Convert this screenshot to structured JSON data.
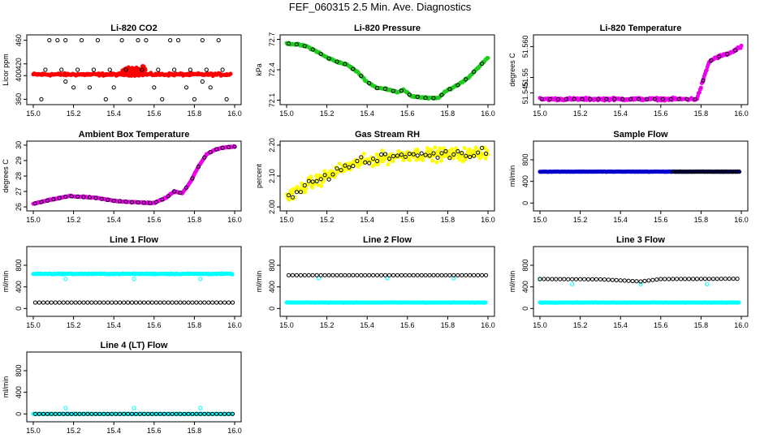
{
  "figure": {
    "title": "FEF_060315  2.5 Min. Ave. Diagnostics"
  },
  "colors": {
    "red": "#ff0000",
    "green": "#22cc22",
    "magenta": "#ee00ee",
    "yellow": "#ffff00",
    "blue": "#0000cc",
    "cyan": "#00ffff",
    "black": "#000000"
  },
  "chart_data": [
    {
      "type": "scatter",
      "title": "Li-820 CO2",
      "ylabel": "Licor ppm",
      "xlim": [
        15.0,
        16.0
      ],
      "ylim": [
        355,
        465
      ],
      "xticks": [
        "15.0",
        "15.2",
        "15.4",
        "15.6",
        "15.8",
        "16.0"
      ],
      "yticks": [
        {
          "v": 360,
          "t": "360"
        },
        {
          "v": 400,
          "t": "400"
        },
        {
          "v": 420,
          "t": "420"
        },
        {
          "v": 460,
          "t": "460"
        }
      ],
      "series": [
        {
          "marker": "dense",
          "color": "red",
          "kind": "flat",
          "y": 402,
          "noise": 3,
          "start": 15.0,
          "end": 15.98
        },
        {
          "marker": "dense",
          "color": "red",
          "kind": "bump",
          "x0": 15.44,
          "x1": 15.56,
          "y": 410,
          "noise": 8
        },
        {
          "marker": "ring",
          "color": "black",
          "kind": "points",
          "pts": [
            [
              15.04,
              360
            ],
            [
              15.08,
              460
            ],
            [
              15.12,
              460
            ],
            [
              15.16,
              460
            ],
            [
              15.2,
              380
            ],
            [
              15.24,
              460
            ],
            [
              15.28,
              380
            ],
            [
              15.32,
              460
            ],
            [
              15.36,
              360
            ],
            [
              15.4,
              380
            ],
            [
              15.44,
              460
            ],
            [
              15.48,
              360
            ],
            [
              15.52,
              460
            ],
            [
              15.56,
              460
            ],
            [
              15.6,
              380
            ],
            [
              15.64,
              360
            ],
            [
              15.68,
              460
            ],
            [
              15.72,
              460
            ],
            [
              15.76,
              380
            ],
            [
              15.8,
              360
            ],
            [
              15.84,
              460
            ],
            [
              15.88,
              380
            ],
            [
              15.92,
              460
            ],
            [
              15.96,
              360
            ],
            [
              15.06,
              410
            ],
            [
              15.14,
              410
            ],
            [
              15.22,
              410
            ],
            [
              15.3,
              410
            ],
            [
              15.38,
              410
            ],
            [
              15.46,
              410
            ],
            [
              15.54,
              410
            ],
            [
              15.62,
              410
            ],
            [
              15.7,
              410
            ],
            [
              15.78,
              410
            ],
            [
              15.86,
              410
            ],
            [
              15.94,
              410
            ],
            [
              15.16,
              390
            ],
            [
              15.84,
              390
            ]
          ]
        }
      ]
    },
    {
      "type": "scatter",
      "title": "Li-820 Pressure",
      "ylabel": "kPa",
      "xlim": [
        15.0,
        16.0
      ],
      "ylim": [
        72.08,
        72.72
      ],
      "xticks": [
        "15.0",
        "15.2",
        "15.4",
        "15.6",
        "15.8",
        "16.0"
      ],
      "yticks": [
        {
          "v": 72.1,
          "t": "72.1"
        },
        {
          "v": 72.4,
          "t": "72.4"
        },
        {
          "v": 72.7,
          "t": "72.7"
        }
      ],
      "series": [
        {
          "marker": "dense",
          "color": "green",
          "kind": "curve",
          "noise": 0.012,
          "pts": [
            [
              15.0,
              72.66
            ],
            [
              15.05,
              72.65
            ],
            [
              15.1,
              72.63
            ],
            [
              15.15,
              72.58
            ],
            [
              15.2,
              72.52
            ],
            [
              15.25,
              72.48
            ],
            [
              15.3,
              72.45
            ],
            [
              15.35,
              72.38
            ],
            [
              15.4,
              72.28
            ],
            [
              15.45,
              72.22
            ],
            [
              15.5,
              72.21
            ],
            [
              15.55,
              72.18
            ],
            [
              15.58,
              72.2
            ],
            [
              15.62,
              72.14
            ],
            [
              15.7,
              72.12
            ],
            [
              15.75,
              72.12
            ],
            [
              15.8,
              72.2
            ],
            [
              15.85,
              72.25
            ],
            [
              15.9,
              72.32
            ],
            [
              15.95,
              72.42
            ],
            [
              16.0,
              72.52
            ]
          ]
        },
        {
          "marker": "ring",
          "color": "black",
          "kind": "sample",
          "step": 0.04,
          "ref": 0,
          "offset": 0.0
        }
      ]
    },
    {
      "type": "scatter",
      "title": "Li-820 Temperature",
      "ylabel": "degrees C",
      "xlim": [
        15.0,
        16.0
      ],
      "ylim": [
        51.542,
        51.563
      ],
      "xticks": [
        "15.0",
        "15.2",
        "15.4",
        "15.6",
        "15.8",
        "16.0"
      ],
      "yticks": [
        {
          "v": 51.545,
          "t": "51.545"
        },
        {
          "v": 51.55,
          "t": "51.55"
        },
        {
          "v": 51.56,
          "t": "51.560"
        }
      ],
      "series": [
        {
          "marker": "dense",
          "color": "magenta",
          "kind": "curve",
          "noise": 0.0006,
          "pts": [
            [
              15.0,
              51.543
            ],
            [
              15.78,
              51.543
            ],
            [
              15.8,
              51.547
            ],
            [
              15.82,
              51.551
            ],
            [
              15.84,
              51.555
            ],
            [
              15.86,
              51.556
            ],
            [
              15.9,
              51.557
            ],
            [
              15.95,
              51.558
            ],
            [
              16.0,
              51.56
            ]
          ]
        },
        {
          "marker": "ring",
          "color": "black",
          "kind": "sample",
          "step": 0.04,
          "ref": 0,
          "offset": 0.0
        }
      ]
    },
    {
      "type": "scatter",
      "title": "Ambient Box Temperature",
      "ylabel": "degrees C",
      "xlim": [
        15.0,
        16.0
      ],
      "ylim": [
        25.9,
        30.1
      ],
      "xticks": [
        "15.0",
        "15.2",
        "15.4",
        "15.6",
        "15.8",
        "16.0"
      ],
      "yticks": [
        {
          "v": 26,
          "t": "26"
        },
        {
          "v": 27,
          "t": "27"
        },
        {
          "v": 28,
          "t": "28"
        },
        {
          "v": 29,
          "t": "29"
        },
        {
          "v": 30,
          "t": "30"
        }
      ],
      "series": [
        {
          "marker": "dense",
          "color": "magenta",
          "kind": "curve",
          "noise": 0.05,
          "pts": [
            [
              15.0,
              26.2
            ],
            [
              15.1,
              26.5
            ],
            [
              15.18,
              26.7
            ],
            [
              15.3,
              26.6
            ],
            [
              15.4,
              26.4
            ],
            [
              15.5,
              26.3
            ],
            [
              15.6,
              26.25
            ],
            [
              15.66,
              26.6
            ],
            [
              15.7,
              27.0
            ],
            [
              15.74,
              26.9
            ],
            [
              15.78,
              27.6
            ],
            [
              15.82,
              28.6
            ],
            [
              15.86,
              29.4
            ],
            [
              15.9,
              29.7
            ],
            [
              15.95,
              29.85
            ],
            [
              16.0,
              29.9
            ]
          ]
        },
        {
          "marker": "ring",
          "color": "black",
          "kind": "sample",
          "step": 0.03,
          "ref": 0,
          "offset": 0.0
        }
      ]
    },
    {
      "type": "scatter",
      "title": "Gas Stream RH",
      "ylabel": "percent",
      "xlim": [
        15.0,
        16.0
      ],
      "ylim": [
        1.995,
        2.205
      ],
      "xticks": [
        "15.0",
        "15.2",
        "15.4",
        "15.6",
        "15.8",
        "16.0"
      ],
      "yticks": [
        {
          "v": 2.0,
          "t": "2.00"
        },
        {
          "v": 2.1,
          "t": "2.10"
        },
        {
          "v": 2.2,
          "t": "2.20"
        }
      ],
      "series": [
        {
          "marker": "dense",
          "color": "yellow",
          "kind": "curve",
          "noise": 0.03,
          "pts": [
            [
              15.0,
              2.03
            ],
            [
              15.1,
              2.07
            ],
            [
              15.2,
              2.1
            ],
            [
              15.3,
              2.13
            ],
            [
              15.4,
              2.15
            ],
            [
              15.5,
              2.16
            ],
            [
              15.6,
              2.17
            ],
            [
              15.7,
              2.17
            ],
            [
              15.8,
              2.17
            ],
            [
              15.9,
              2.17
            ],
            [
              16.0,
              2.18
            ]
          ]
        },
        {
          "marker": "ring",
          "color": "black",
          "kind": "sample",
          "step": 0.02,
          "ref": 0,
          "offset": 0.0,
          "noise": 0.02
        }
      ]
    },
    {
      "type": "scatter",
      "title": "Sample Flow",
      "ylabel": "ml/min",
      "xlim": [
        15.0,
        16.0
      ],
      "ylim": [
        -100,
        1100
      ],
      "xticks": [
        "15.0",
        "15.2",
        "15.4",
        "15.6",
        "15.8",
        "16.0"
      ],
      "yticks": [
        {
          "v": 0,
          "t": "0"
        },
        {
          "v": 400,
          "t": "400"
        },
        {
          "v": 800,
          "t": "800"
        }
      ],
      "series": [
        {
          "marker": "dense",
          "color": "blue",
          "kind": "flat",
          "y": 580,
          "noise": 5,
          "start": 15.0,
          "end": 15.99
        },
        {
          "marker": "ring",
          "color": "black",
          "kind": "flatring",
          "y": 580,
          "start": 15.66,
          "end": 15.99,
          "step": 0.01
        }
      ]
    },
    {
      "type": "scatter",
      "title": "Line 1 Flow",
      "ylabel": "ml/min",
      "xlim": [
        15.0,
        16.0
      ],
      "ylim": [
        -100,
        1100
      ],
      "xticks": [
        "15.0",
        "15.2",
        "15.4",
        "15.6",
        "15.8",
        "16.0"
      ],
      "yticks": [
        {
          "v": 0,
          "t": "0"
        },
        {
          "v": 400,
          "t": "400"
        },
        {
          "v": 800,
          "t": "800"
        }
      ],
      "series": [
        {
          "marker": "dense",
          "color": "cyan",
          "kind": "flat",
          "y": 640,
          "noise": 12,
          "start": 15.0,
          "end": 15.99
        },
        {
          "marker": "ring",
          "color": "cyan",
          "kind": "points",
          "pts": [
            [
              15.16,
              545
            ],
            [
              15.5,
              545
            ],
            [
              15.83,
              545
            ]
          ]
        },
        {
          "marker": "ring",
          "color": "black",
          "kind": "flatring",
          "y": 110,
          "start": 15.01,
          "end": 15.99,
          "step": 0.02
        }
      ]
    },
    {
      "type": "scatter",
      "title": "Line 2 Flow",
      "ylabel": "ml/min",
      "xlim": [
        15.0,
        16.0
      ],
      "ylim": [
        -100,
        1100
      ],
      "xticks": [
        "15.0",
        "15.2",
        "15.4",
        "15.6",
        "15.8",
        "16.0"
      ],
      "yticks": [
        {
          "v": 0,
          "t": "0"
        },
        {
          "v": 400,
          "t": "400"
        },
        {
          "v": 800,
          "t": "800"
        }
      ],
      "series": [
        {
          "marker": "dense",
          "color": "cyan",
          "kind": "flat",
          "y": 110,
          "noise": 5,
          "start": 15.0,
          "end": 15.99
        },
        {
          "marker": "ring",
          "color": "cyan",
          "kind": "points",
          "pts": [
            [
              15.16,
              560
            ],
            [
              15.5,
              560
            ],
            [
              15.83,
              560
            ]
          ]
        },
        {
          "marker": "ring",
          "color": "black",
          "kind": "flatring",
          "y": 615,
          "start": 15.01,
          "end": 15.99,
          "step": 0.02
        }
      ]
    },
    {
      "type": "scatter",
      "title": "Line 3 Flow",
      "ylabel": "ml/min",
      "xlim": [
        15.0,
        16.0
      ],
      "ylim": [
        -100,
        1100
      ],
      "xticks": [
        "15.0",
        "15.2",
        "15.4",
        "15.6",
        "15.8",
        "16.0"
      ],
      "yticks": [
        {
          "v": 0,
          "t": "0"
        },
        {
          "v": 400,
          "t": "400"
        },
        {
          "v": 800,
          "t": "800"
        }
      ],
      "series": [
        {
          "marker": "dense",
          "color": "cyan",
          "kind": "flat",
          "y": 110,
          "noise": 5,
          "start": 15.0,
          "end": 15.99
        },
        {
          "marker": "ring",
          "color": "cyan",
          "kind": "points",
          "pts": [
            [
              15.16,
              450
            ],
            [
              15.5,
              450
            ],
            [
              15.83,
              450
            ],
            [
              15.0,
              540
            ]
          ]
        },
        {
          "marker": "ring",
          "color": "black",
          "kind": "curvering",
          "step": 0.02,
          "pts": [
            [
              15.0,
              545
            ],
            [
              15.3,
              540
            ],
            [
              15.5,
              500
            ],
            [
              15.6,
              545
            ],
            [
              16.0,
              550
            ]
          ]
        }
      ]
    },
    {
      "type": "scatter",
      "title": "Line 4 (LT) Flow",
      "ylabel": "ml/min",
      "xlim": [
        15.0,
        16.0
      ],
      "ylim": [
        -100,
        1100
      ],
      "xticks": [
        "15.0",
        "15.2",
        "15.4",
        "15.6",
        "15.8",
        "16.0"
      ],
      "yticks": [
        {
          "v": 0,
          "t": "0"
        },
        {
          "v": 400,
          "t": "400"
        },
        {
          "v": 800,
          "t": "800"
        }
      ],
      "series": [
        {
          "marker": "dense",
          "color": "cyan",
          "kind": "flat",
          "y": 0,
          "noise": 4,
          "start": 15.0,
          "end": 15.99
        },
        {
          "marker": "ring",
          "color": "cyan",
          "kind": "points",
          "pts": [
            [
              15.16,
              110
            ],
            [
              15.5,
              110
            ],
            [
              15.83,
              110
            ]
          ]
        },
        {
          "marker": "ring",
          "color": "black",
          "kind": "flatring",
          "y": 0,
          "start": 15.01,
          "end": 15.99,
          "step": 0.02
        }
      ]
    }
  ]
}
